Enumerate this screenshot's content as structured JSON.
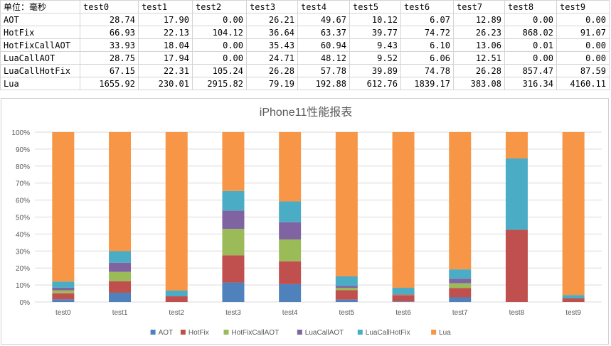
{
  "table": {
    "corner": "单位：毫秒",
    "headers": [
      "test0",
      "test1",
      "test2",
      "test3",
      "test4",
      "test5",
      "test6",
      "test7",
      "test8",
      "test9"
    ],
    "rows": [
      {
        "label": "AOT",
        "cells": [
          "28.74",
          "17.90",
          "0.00",
          "26.21",
          "49.67",
          "10.12",
          "6.07",
          "12.89",
          "0.00",
          "0.00"
        ]
      },
      {
        "label": "HotFix",
        "cells": [
          "66.93",
          "22.13",
          "104.12",
          "36.64",
          "63.37",
          "39.77",
          "74.72",
          "26.23",
          "868.02",
          "91.07"
        ]
      },
      {
        "label": "HotFixCallAOT",
        "cells": [
          "33.93",
          "18.04",
          "0.00",
          "35.43",
          "60.94",
          "9.43",
          "6.10",
          "13.06",
          "0.01",
          "0.00"
        ]
      },
      {
        "label": "LuaCallAOT",
        "cells": [
          "28.75",
          "17.94",
          "0.00",
          "24.71",
          "48.12",
          "9.52",
          "6.06",
          "12.51",
          "0.00",
          "0.00"
        ]
      },
      {
        "label": "LuaCallHotFix",
        "cells": [
          "67.15",
          "22.31",
          "105.24",
          "26.28",
          "57.78",
          "39.89",
          "74.78",
          "26.28",
          "857.47",
          "87.59"
        ]
      },
      {
        "label": "Lua",
        "cells": [
          "1655.92",
          "230.01",
          "2915.82",
          "79.19",
          "192.88",
          "612.76",
          "1839.17",
          "383.08",
          "316.34",
          "4160.11"
        ]
      }
    ]
  },
  "chart_data": {
    "type": "bar",
    "stacked": "percent",
    "title": "iPhone11性能报表",
    "xlabel": "",
    "ylabel": "",
    "categories": [
      "test0",
      "test1",
      "test2",
      "test3",
      "test4",
      "test5",
      "test6",
      "test7",
      "test8",
      "test9"
    ],
    "y_ticks": [
      "0%",
      "10%",
      "20%",
      "30%",
      "40%",
      "50%",
      "60%",
      "70%",
      "80%",
      "90%",
      "100%"
    ],
    "ylim": [
      0,
      1
    ],
    "grid": true,
    "legend": "bottom",
    "series": [
      {
        "name": "AOT",
        "color": "#4f81bd",
        "values": [
          28.74,
          17.9,
          0.0,
          26.21,
          49.67,
          10.12,
          6.07,
          12.89,
          0.0,
          0.0
        ]
      },
      {
        "name": "HotFix",
        "color": "#c0504d",
        "values": [
          66.93,
          22.13,
          104.12,
          36.64,
          63.37,
          39.77,
          74.72,
          26.23,
          868.02,
          91.07
        ]
      },
      {
        "name": "HotFixCallAOT",
        "color": "#9bbb59",
        "values": [
          33.93,
          18.04,
          0.0,
          35.43,
          60.94,
          9.43,
          6.1,
          13.06,
          0.01,
          0.0
        ]
      },
      {
        "name": "LuaCallAOT",
        "color": "#8064a2",
        "values": [
          28.75,
          17.94,
          0.0,
          24.71,
          48.12,
          9.52,
          6.06,
          12.51,
          0.0,
          0.0
        ]
      },
      {
        "name": "LuaCallHotFix",
        "color": "#4bacc6",
        "values": [
          67.15,
          22.31,
          105.24,
          26.28,
          57.78,
          39.89,
          74.78,
          26.28,
          857.47,
          87.59
        ]
      },
      {
        "name": "Lua",
        "color": "#f79646",
        "values": [
          1655.92,
          230.01,
          2915.82,
          79.19,
          192.88,
          612.76,
          1839.17,
          383.08,
          316.34,
          4160.11
        ]
      }
    ]
  }
}
